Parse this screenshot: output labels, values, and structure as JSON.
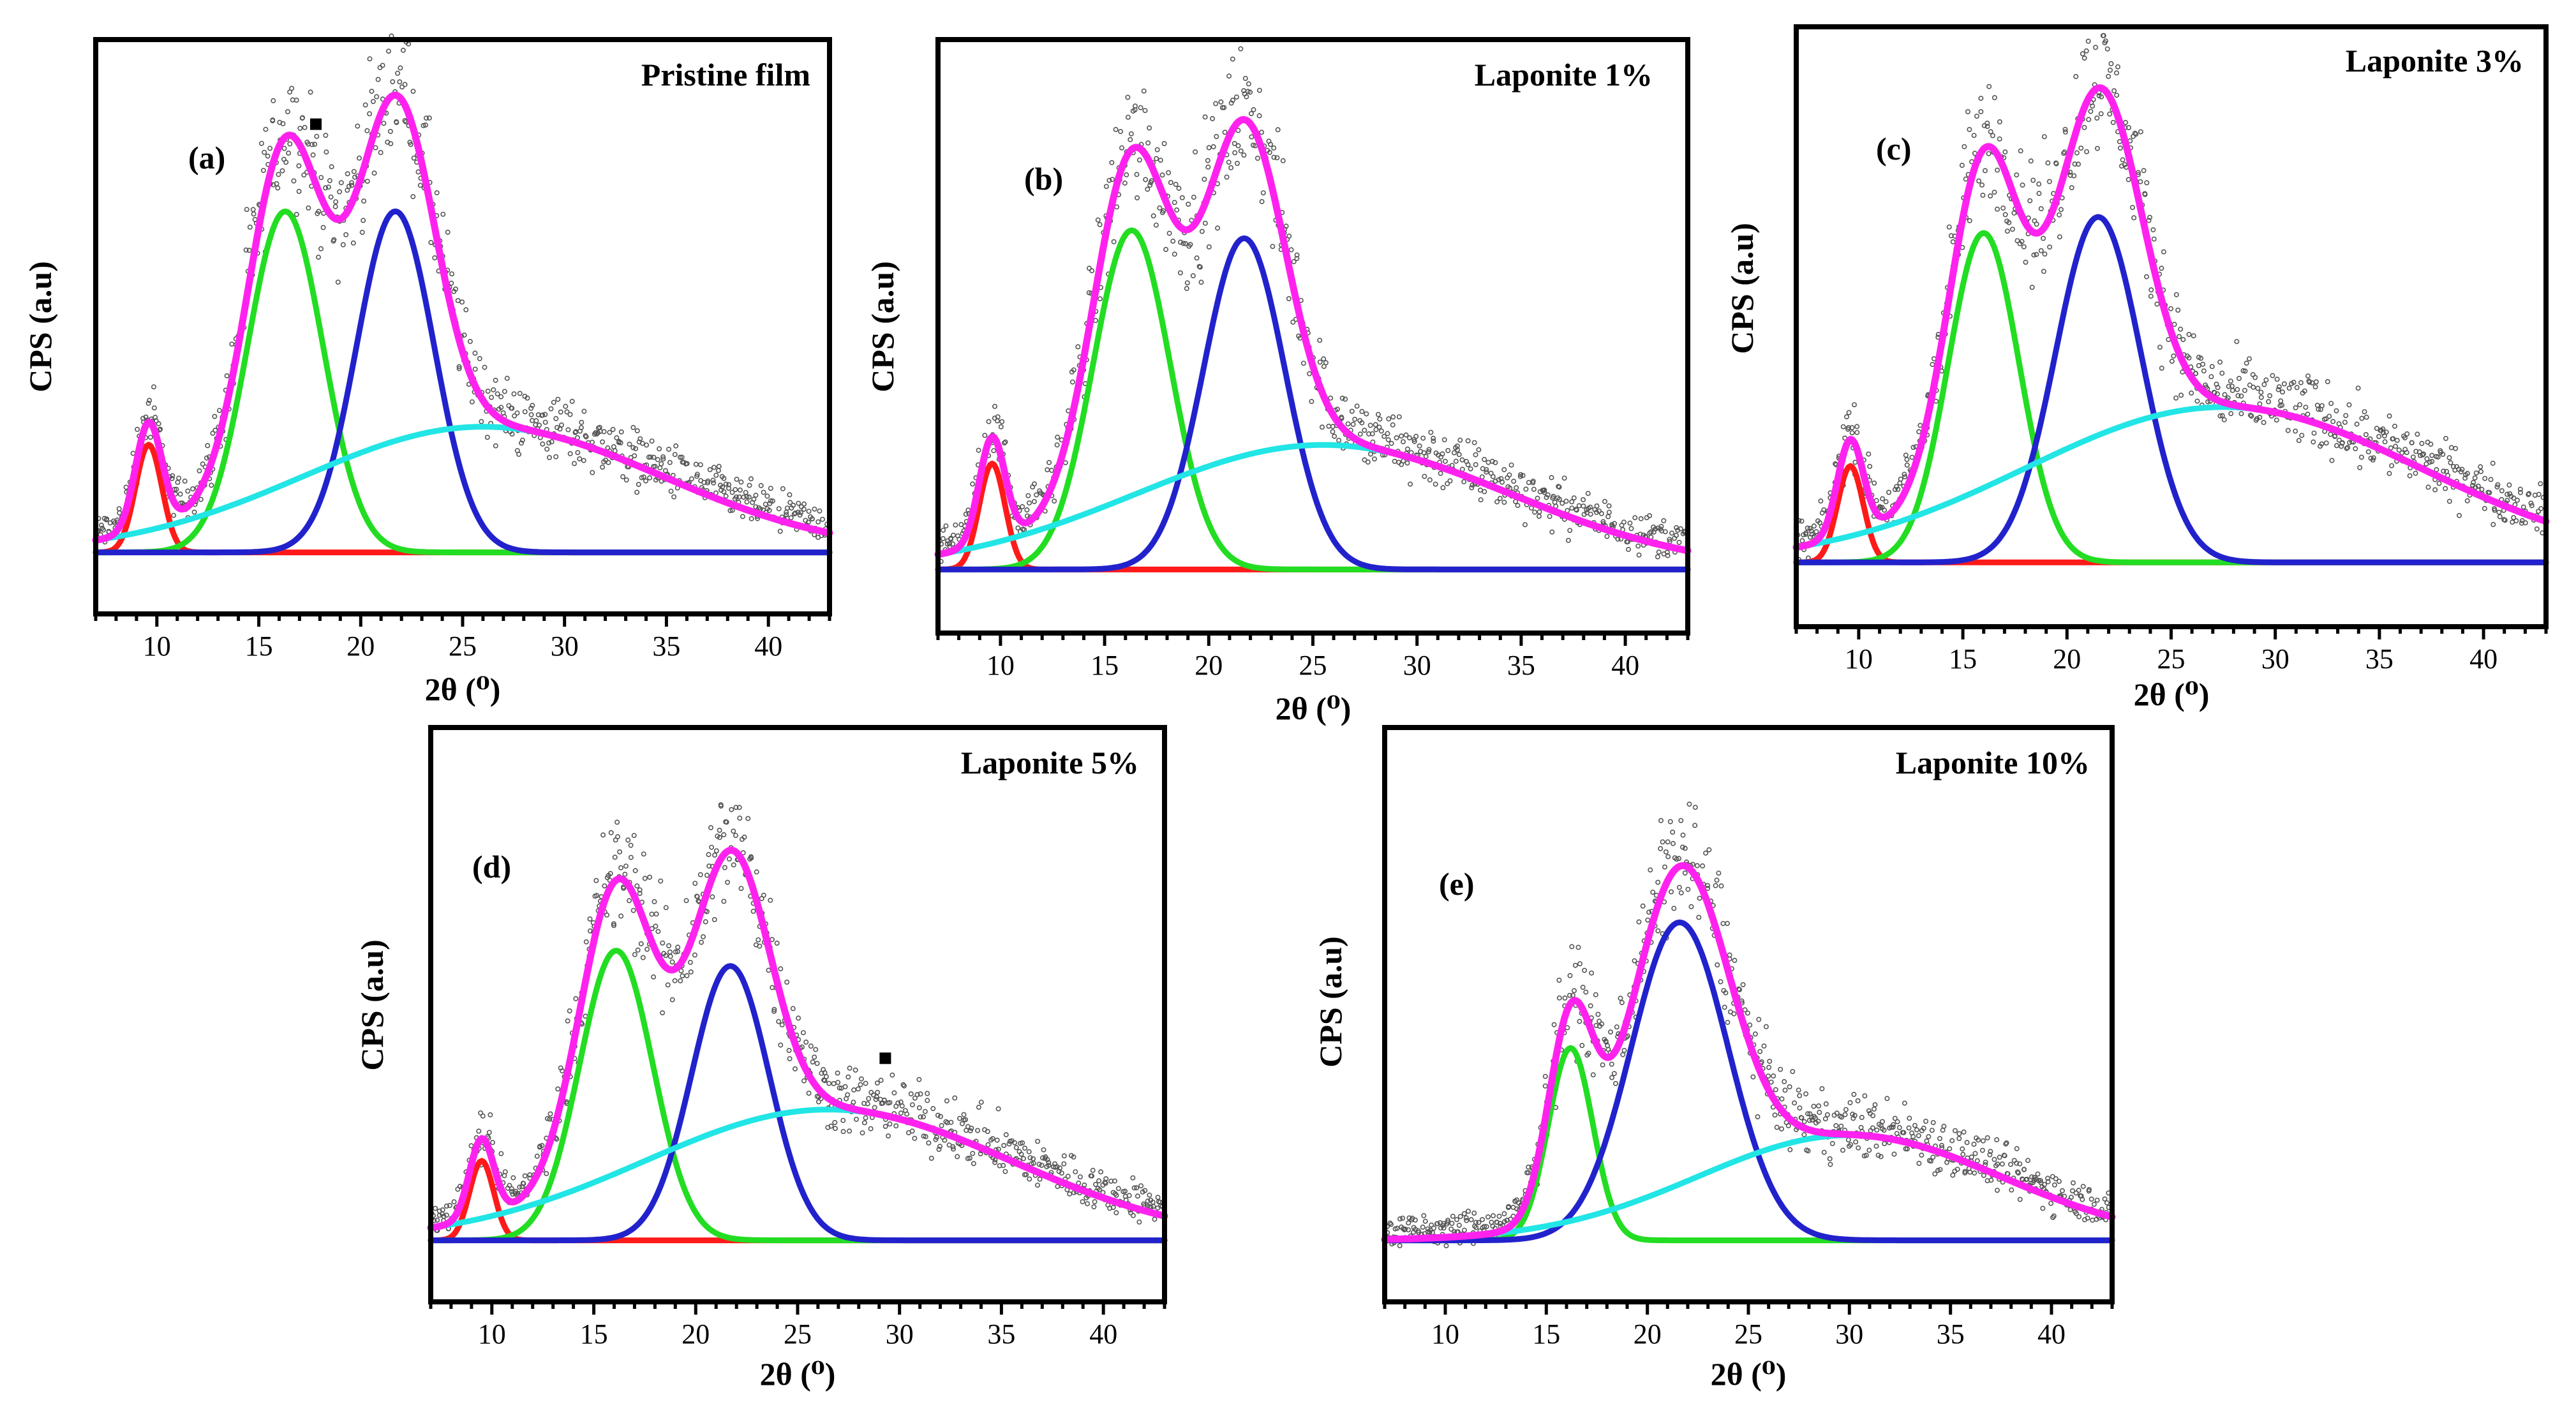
{
  "chart_data": [
    {
      "id": "a",
      "type": "line",
      "tag": "(a)",
      "title": "Pristine film",
      "xlabel": "2θ (⁰)",
      "ylabel": "CPS (a.u)",
      "xlim": [
        7,
        43
      ],
      "ylim": [
        -0.12,
        1.0
      ],
      "xticks": [
        10,
        15,
        20,
        25,
        30,
        35,
        40
      ],
      "markers": [
        {
          "x": 17.8,
          "y": 0.835
        }
      ],
      "components": [
        {
          "name": "peak-1",
          "color": "#ff1a1a",
          "center": 9.6,
          "height": 0.21,
          "width": 0.65
        },
        {
          "name": "peak-2",
          "color": "#22dd22",
          "center": 16.3,
          "height": 0.665,
          "width": 1.85
        },
        {
          "name": "peak-3",
          "color": "#2222cc",
          "center": 21.7,
          "height": 0.665,
          "width": 1.9
        },
        {
          "name": "amorphous-halo",
          "color": "#22e5e5",
          "center": 26.0,
          "height": 0.245,
          "width": 8.8
        }
      ],
      "fit_color": "#ff22ee",
      "data_color": "#555555"
    },
    {
      "id": "b",
      "type": "line",
      "tag": "(b)",
      "title": "Laponite 1%",
      "xlabel": "2θ (⁰)",
      "ylabel": "CPS (a.u)",
      "xlim": [
        7,
        43
      ],
      "ylim": [
        -0.12,
        1.0
      ],
      "xticks": [
        10,
        15,
        20,
        25,
        30,
        35,
        40
      ],
      "markers": [],
      "components": [
        {
          "name": "peak-1",
          "color": "#ff1a1a",
          "center": 9.6,
          "height": 0.2,
          "width": 0.62
        },
        {
          "name": "peak-2",
          "color": "#22dd22",
          "center": 16.3,
          "height": 0.64,
          "width": 1.85
        },
        {
          "name": "peak-3",
          "color": "#2222cc",
          "center": 21.7,
          "height": 0.625,
          "width": 1.95
        },
        {
          "name": "amorphous-halo",
          "color": "#22e5e5",
          "center": 25.5,
          "height": 0.235,
          "width": 9.0
        }
      ],
      "fit_color": "#ff22ee",
      "data_color": "#555555"
    },
    {
      "id": "c",
      "type": "line",
      "tag": "(c)",
      "title": "Laponite 3%",
      "xlabel": "2θ (⁰)",
      "ylabel": "CPS (a.u)",
      "xlim": [
        7,
        43
      ],
      "ylim": [
        -0.12,
        1.0
      ],
      "xticks": [
        10,
        15,
        20,
        25,
        30,
        35,
        40
      ],
      "markers": [],
      "components": [
        {
          "name": "peak-1",
          "color": "#ff1a1a",
          "center": 9.6,
          "height": 0.18,
          "width": 0.62
        },
        {
          "name": "peak-2",
          "color": "#22dd22",
          "center": 16.0,
          "height": 0.615,
          "width": 1.7
        },
        {
          "name": "peak-3",
          "color": "#2222cc",
          "center": 21.5,
          "height": 0.645,
          "width": 2.05
        },
        {
          "name": "amorphous-halo",
          "color": "#22e5e5",
          "center": 27.5,
          "height": 0.29,
          "width": 9.5
        }
      ],
      "fit_color": "#ff22ee",
      "data_color": "#555555"
    },
    {
      "id": "d",
      "type": "line",
      "tag": "(d)",
      "title": "Laponite 5%",
      "xlabel": "2θ (⁰)",
      "ylabel": "CPS (a.u)",
      "xlim": [
        7,
        43
      ],
      "ylim": [
        -0.12,
        1.0
      ],
      "xticks": [
        10,
        15,
        20,
        25,
        30,
        35,
        40
      ],
      "markers": [
        {
          "x": 29.3,
          "y": 0.355
        }
      ],
      "components": [
        {
          "name": "peak-1",
          "color": "#ff1a1a",
          "center": 9.5,
          "height": 0.155,
          "width": 0.6
        },
        {
          "name": "peak-2",
          "color": "#22dd22",
          "center": 16.1,
          "height": 0.565,
          "width": 1.8
        },
        {
          "name": "peak-3",
          "color": "#2222cc",
          "center": 21.7,
          "height": 0.535,
          "width": 1.9
        },
        {
          "name": "amorphous-halo",
          "color": "#22e5e5",
          "center": 26.5,
          "height": 0.255,
          "width": 9.0
        }
      ],
      "fit_color": "#ff22ee",
      "data_color": "#555555"
    },
    {
      "id": "e",
      "type": "line",
      "tag": "(e)",
      "title": "Laponite 10%",
      "xlabel": "2θ (⁰)",
      "ylabel": "CPS (a.u)",
      "xlim": [
        7,
        43
      ],
      "ylim": [
        -0.12,
        1.0
      ],
      "xticks": [
        10,
        15,
        20,
        25,
        30,
        35,
        40
      ],
      "markers": [],
      "components": [
        {
          "name": "peak-2",
          "color": "#22dd22",
          "center": 16.2,
          "height": 0.375,
          "width": 1.1
        },
        {
          "name": "peak-3",
          "color": "#2222cc",
          "center": 21.6,
          "height": 0.62,
          "width": 2.4
        },
        {
          "name": "amorphous-halo",
          "color": "#22e5e5",
          "center": 30.0,
          "height": 0.205,
          "width": 7.5
        }
      ],
      "fit_color": "#ff22ee",
      "data_color": "#555555"
    }
  ]
}
